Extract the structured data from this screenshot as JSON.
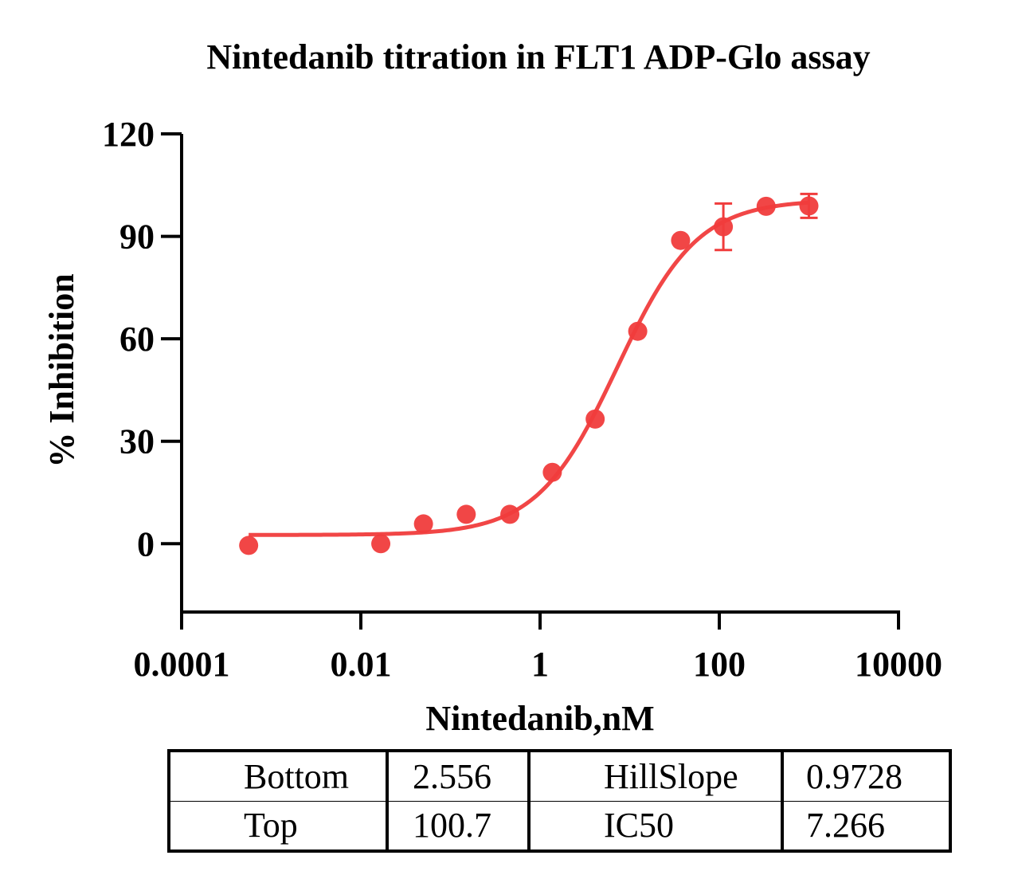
{
  "chart_data": {
    "type": "scatter",
    "title": "Nintedanib titration in FLT1 ADP-Glo assay",
    "xlabel": "Nintedanib,nM",
    "ylabel": "% Inhibition",
    "x_scale": "log",
    "xlim": [
      0.0001,
      10000
    ],
    "ylim": [
      -20,
      120
    ],
    "x_ticks": [
      0.0001,
      0.01,
      1,
      100,
      10000
    ],
    "x_tick_labels": [
      "0.0001",
      "0.01",
      "1",
      "100",
      "10000"
    ],
    "y_ticks": [
      0,
      30,
      60,
      90,
      120
    ],
    "y_tick_labels": [
      "0",
      "30",
      "60",
      "90",
      "120"
    ],
    "series": [
      {
        "color": "#f03c3c",
        "points": [
          {
            "x": 0.00056,
            "y": -0.5,
            "err": 0
          },
          {
            "x": 0.0167,
            "y": 0,
            "err": 0
          },
          {
            "x": 0.05,
            "y": 5.8,
            "err": 0
          },
          {
            "x": 0.15,
            "y": 8.6,
            "err": 0
          },
          {
            "x": 0.46,
            "y": 8.6,
            "err": 0
          },
          {
            "x": 1.37,
            "y": 20.9,
            "err": 0
          },
          {
            "x": 4.12,
            "y": 36.5,
            "err": 0
          },
          {
            "x": 12.3,
            "y": 62.2,
            "err": 0
          },
          {
            "x": 37.0,
            "y": 88.8,
            "err": 0
          },
          {
            "x": 111,
            "y": 92.8,
            "err": 6.8
          },
          {
            "x": 333,
            "y": 98.8,
            "err": 0
          },
          {
            "x": 1000,
            "y": 98.9,
            "err": 3.5
          }
        ],
        "fit": {
          "model": "four-parameter logistic",
          "bottom": 2.556,
          "top": 100.7,
          "hillslope": 0.9728,
          "ic50": 7.266,
          "x_range": [
            0.00056,
            1000
          ]
        }
      }
    ]
  },
  "fit_table": {
    "rows": [
      {
        "label1": "Bottom",
        "value1": "2.556",
        "label2": "HillSlope",
        "value2": "0.9728"
      },
      {
        "label1": "Top",
        "value1": "100.7",
        "label2": "IC50",
        "value2": "7.266"
      }
    ]
  }
}
